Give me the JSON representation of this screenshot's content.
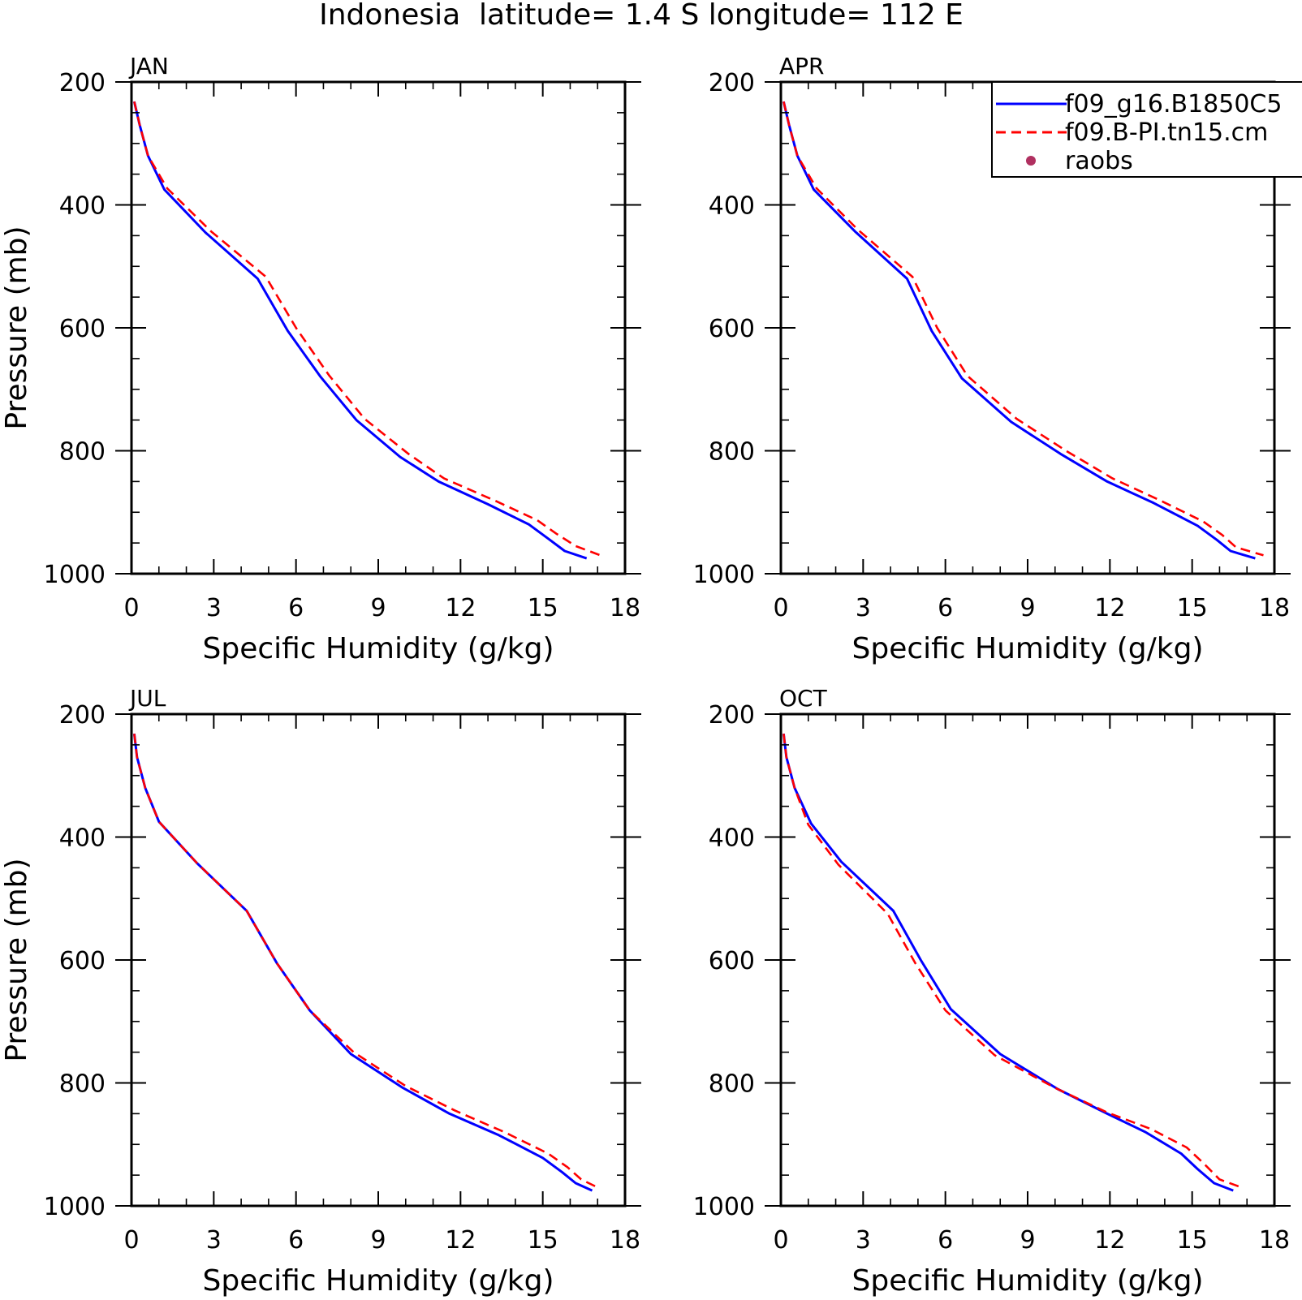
{
  "figure": {
    "title": "Indonesia  latitude= 1.4 S longitude= 112 E"
  },
  "legend": {
    "placement": "top-right",
    "entries": [
      {
        "label": "f09_g16.B1850C5",
        "color": "#0000ff",
        "style": "solid"
      },
      {
        "label": "f09.B-PI.tn15.cm",
        "color": "#ff0000",
        "style": "dashed"
      },
      {
        "label": "raobs",
        "color": "#b03060",
        "style": "marker"
      }
    ]
  },
  "chart_data": [
    {
      "type": "line",
      "title": "JAN",
      "xlabel": "Specific Humidity (g/kg)",
      "ylabel": "Pressure (mb)",
      "xlim": [
        0,
        18
      ],
      "ylim": [
        1000,
        200
      ],
      "y_inverted": true,
      "xticks": [
        "0",
        "3",
        "6",
        "9",
        "12",
        "15",
        "18"
      ],
      "yticks": [
        "200",
        "400",
        "600",
        "800",
        "1000"
      ],
      "series": [
        {
          "name": "f09_g16.B1850C5",
          "color": "#0000ff",
          "style": "solid",
          "x": [
            0.1,
            0.3,
            0.6,
            1.2,
            2.7,
            4.6,
            5.7,
            6.9,
            8.2,
            9.8,
            11.2,
            13.0,
            14.5,
            15.2,
            15.8,
            16.6
          ],
          "y": [
            232,
            270,
            320,
            375,
            445,
            520,
            605,
            680,
            750,
            810,
            850,
            887,
            920,
            943,
            963,
            975
          ]
        },
        {
          "name": "f09.B-PI.tn15.cm",
          "color": "#ff0000",
          "style": "dashed",
          "x": [
            0.1,
            0.3,
            0.6,
            1.3,
            2.9,
            4.9,
            6.0,
            7.2,
            8.5,
            10.1,
            11.4,
            13.3,
            14.8,
            15.5,
            16.2,
            17.1
          ],
          "y": [
            232,
            270,
            320,
            373,
            443,
            517,
            600,
            677,
            748,
            805,
            845,
            882,
            913,
            935,
            955,
            970
          ]
        }
      ]
    },
    {
      "type": "line",
      "title": "APR",
      "xlabel": "Specific Humidity (g/kg)",
      "ylabel": "",
      "xlim": [
        0,
        18
      ],
      "ylim": [
        1000,
        200
      ],
      "y_inverted": true,
      "xticks": [
        "0",
        "3",
        "6",
        "9",
        "12",
        "15",
        "18"
      ],
      "yticks": [
        "200",
        "400",
        "600",
        "800",
        "1000"
      ],
      "series": [
        {
          "name": "f09_g16.B1850C5",
          "color": "#0000ff",
          "style": "solid",
          "x": [
            0.1,
            0.3,
            0.6,
            1.2,
            2.7,
            4.6,
            5.5,
            6.6,
            8.4,
            10.2,
            11.9,
            13.6,
            15.2,
            15.9,
            16.4,
            17.3
          ],
          "y": [
            232,
            270,
            320,
            375,
            443,
            520,
            605,
            682,
            753,
            805,
            850,
            885,
            922,
            945,
            963,
            975
          ]
        },
        {
          "name": "f09.B-PI.tn15.cm",
          "color": "#ff0000",
          "style": "dashed",
          "x": [
            0.1,
            0.3,
            0.6,
            1.3,
            2.8,
            4.8,
            5.7,
            6.8,
            8.6,
            10.4,
            12.1,
            13.8,
            15.4,
            16.1,
            16.6,
            17.6
          ],
          "y": [
            232,
            270,
            320,
            373,
            440,
            517,
            600,
            678,
            748,
            800,
            845,
            880,
            915,
            937,
            957,
            970
          ]
        }
      ]
    },
    {
      "type": "line",
      "title": "JUL",
      "xlabel": "Specific Humidity (g/kg)",
      "ylabel": "Pressure (mb)",
      "xlim": [
        0,
        18
      ],
      "ylim": [
        1000,
        200
      ],
      "y_inverted": true,
      "xticks": [
        "0",
        "3",
        "6",
        "9",
        "12",
        "15",
        "18"
      ],
      "yticks": [
        "200",
        "400",
        "600",
        "800",
        "1000"
      ],
      "series": [
        {
          "name": "f09_g16.B1850C5",
          "color": "#0000ff",
          "style": "solid",
          "x": [
            0.1,
            0.2,
            0.5,
            1.0,
            2.4,
            4.2,
            5.3,
            6.5,
            8.0,
            9.9,
            11.6,
            13.4,
            15.0,
            15.7,
            16.2,
            16.8
          ],
          "y": [
            232,
            270,
            320,
            375,
            443,
            520,
            605,
            682,
            753,
            808,
            850,
            885,
            922,
            945,
            963,
            975
          ]
        },
        {
          "name": "f09.B-PI.tn15.cm",
          "color": "#ff0000",
          "style": "dashed",
          "x": [
            0.1,
            0.2,
            0.5,
            1.0,
            2.4,
            4.2,
            5.3,
            6.5,
            8.1,
            10.0,
            11.8,
            13.6,
            15.2,
            15.9,
            16.4,
            17.0
          ],
          "y": [
            232,
            270,
            320,
            375,
            443,
            520,
            605,
            682,
            750,
            805,
            845,
            880,
            915,
            937,
            957,
            970
          ]
        }
      ]
    },
    {
      "type": "line",
      "title": "OCT",
      "xlabel": "Specific Humidity (g/kg)",
      "ylabel": "",
      "xlim": [
        0,
        18
      ],
      "ylim": [
        1000,
        200
      ],
      "y_inverted": true,
      "xticks": [
        "0",
        "3",
        "6",
        "9",
        "12",
        "15",
        "18"
      ],
      "yticks": [
        "200",
        "400",
        "600",
        "800",
        "1000"
      ],
      "series": [
        {
          "name": "f09_g16.B1850C5",
          "color": "#0000ff",
          "style": "solid",
          "x": [
            0.1,
            0.2,
            0.5,
            1.1,
            2.2,
            4.1,
            5.1,
            6.2,
            8.0,
            10.1,
            11.9,
            13.3,
            14.6,
            15.2,
            15.8,
            16.5
          ],
          "y": [
            232,
            270,
            320,
            378,
            440,
            520,
            600,
            680,
            753,
            810,
            850,
            880,
            915,
            940,
            963,
            975
          ]
        },
        {
          "name": "f09.B-PI.tn15.cm",
          "color": "#ff0000",
          "style": "dashed",
          "x": [
            0.1,
            0.2,
            0.5,
            1.0,
            2.1,
            3.9,
            4.9,
            6.0,
            7.8,
            10.0,
            11.9,
            13.5,
            14.8,
            15.4,
            16.0,
            16.8
          ],
          "y": [
            232,
            270,
            320,
            380,
            445,
            525,
            605,
            682,
            755,
            808,
            848,
            875,
            905,
            930,
            957,
            970
          ]
        }
      ]
    }
  ]
}
